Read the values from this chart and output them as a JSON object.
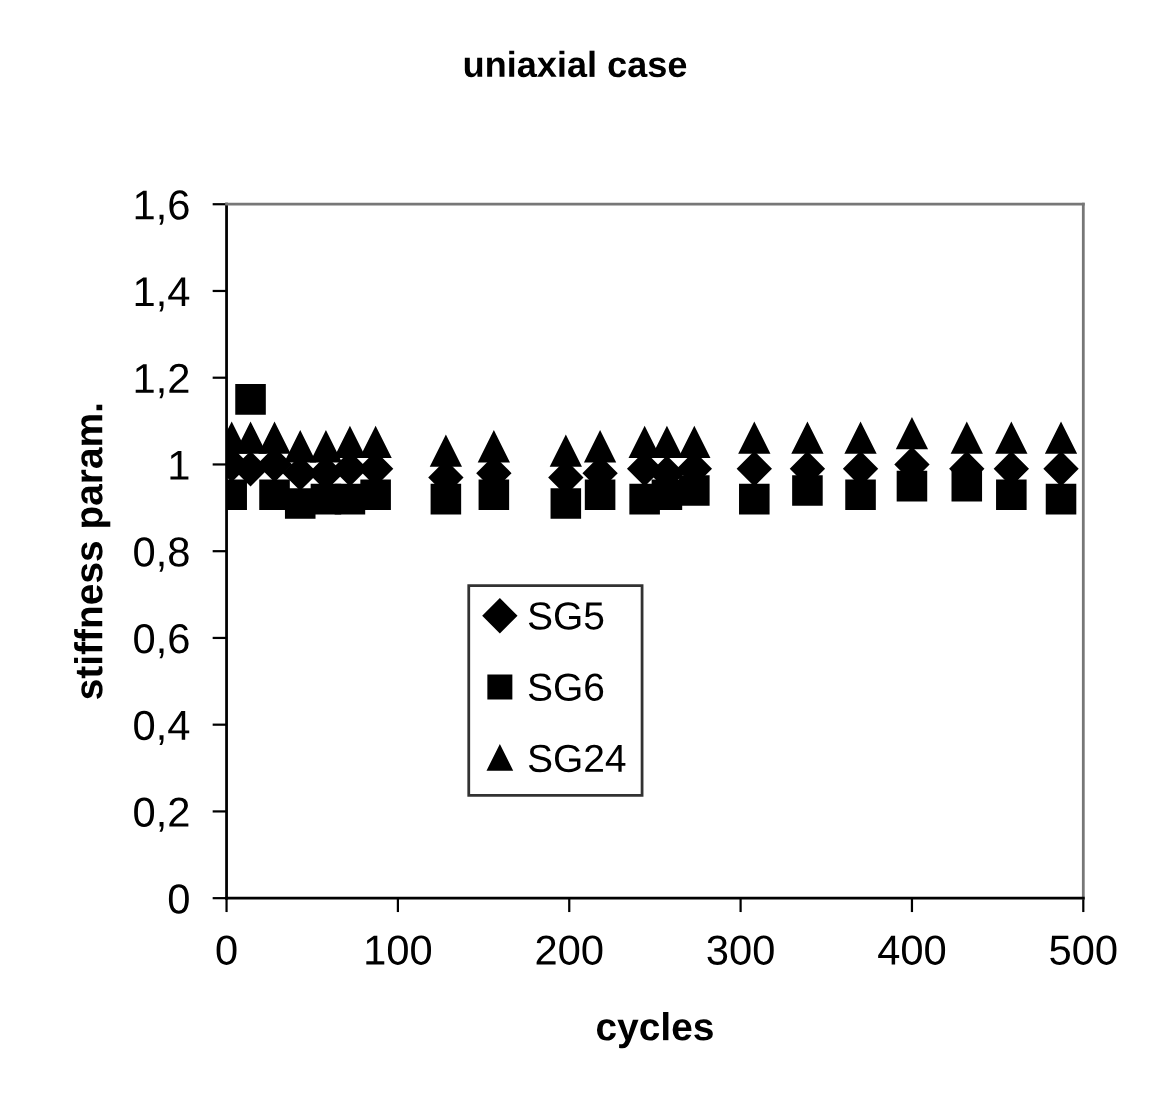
{
  "chart_data": {
    "type": "scatter",
    "title": "uniaxial case",
    "xlabel": "cycles",
    "ylabel": "stiffness param.",
    "xlim": [
      0,
      500
    ],
    "xticks": [
      0,
      100,
      200,
      300,
      400,
      500
    ],
    "ylim": [
      0,
      1.6
    ],
    "yticks": [
      0,
      {
        "value": 0.2,
        "label": "0,2"
      },
      {
        "value": 0.4,
        "label": "0,4"
      },
      {
        "value": 0.6,
        "label": "0,6"
      },
      {
        "value": 0.8,
        "label": "0,8"
      },
      1,
      {
        "value": 1.2,
        "label": "1,2"
      },
      {
        "value": 1.4,
        "label": "1,4"
      },
      {
        "value": 1.6,
        "label": "1,6"
      }
    ],
    "grid": false,
    "legend": "bottom left",
    "series": [
      {
        "name": "SG5",
        "color": "#000000",
        "marker": "diamond",
        "x": [
          3,
          14,
          28,
          43,
          58,
          72,
          87,
          128,
          156,
          198,
          218,
          244,
          257,
          273,
          308,
          339,
          370,
          400,
          432,
          458,
          487
        ],
        "values": [
          1.0,
          0.99,
          1.0,
          0.98,
          0.98,
          0.99,
          0.99,
          0.97,
          0.98,
          0.97,
          0.98,
          0.99,
          0.98,
          0.99,
          0.99,
          0.99,
          0.99,
          1.0,
          0.99,
          0.99,
          0.99
        ]
      },
      {
        "name": "SG6",
        "color": "#000000",
        "marker": "square",
        "x": [
          3,
          14,
          28,
          43,
          58,
          72,
          87,
          128,
          156,
          198,
          218,
          244,
          257,
          273,
          308,
          339,
          370,
          400,
          432,
          458,
          487
        ],
        "values": [
          0.93,
          1.15,
          0.93,
          0.91,
          0.92,
          0.92,
          0.93,
          0.92,
          0.93,
          0.91,
          0.93,
          0.92,
          0.93,
          0.94,
          0.92,
          0.94,
          0.93,
          0.95,
          0.95,
          0.93,
          0.92
        ]
      },
      {
        "name": "SG24",
        "color": "#000000",
        "marker": "triangle",
        "x": [
          3,
          14,
          28,
          43,
          58,
          72,
          87,
          128,
          156,
          198,
          218,
          244,
          257,
          273,
          308,
          339,
          370,
          400,
          432,
          458,
          487
        ],
        "values": [
          1.06,
          1.06,
          1.06,
          1.04,
          1.04,
          1.05,
          1.05,
          1.03,
          1.04,
          1.03,
          1.04,
          1.05,
          1.05,
          1.05,
          1.06,
          1.06,
          1.06,
          1.07,
          1.06,
          1.06,
          1.06
        ]
      }
    ]
  }
}
